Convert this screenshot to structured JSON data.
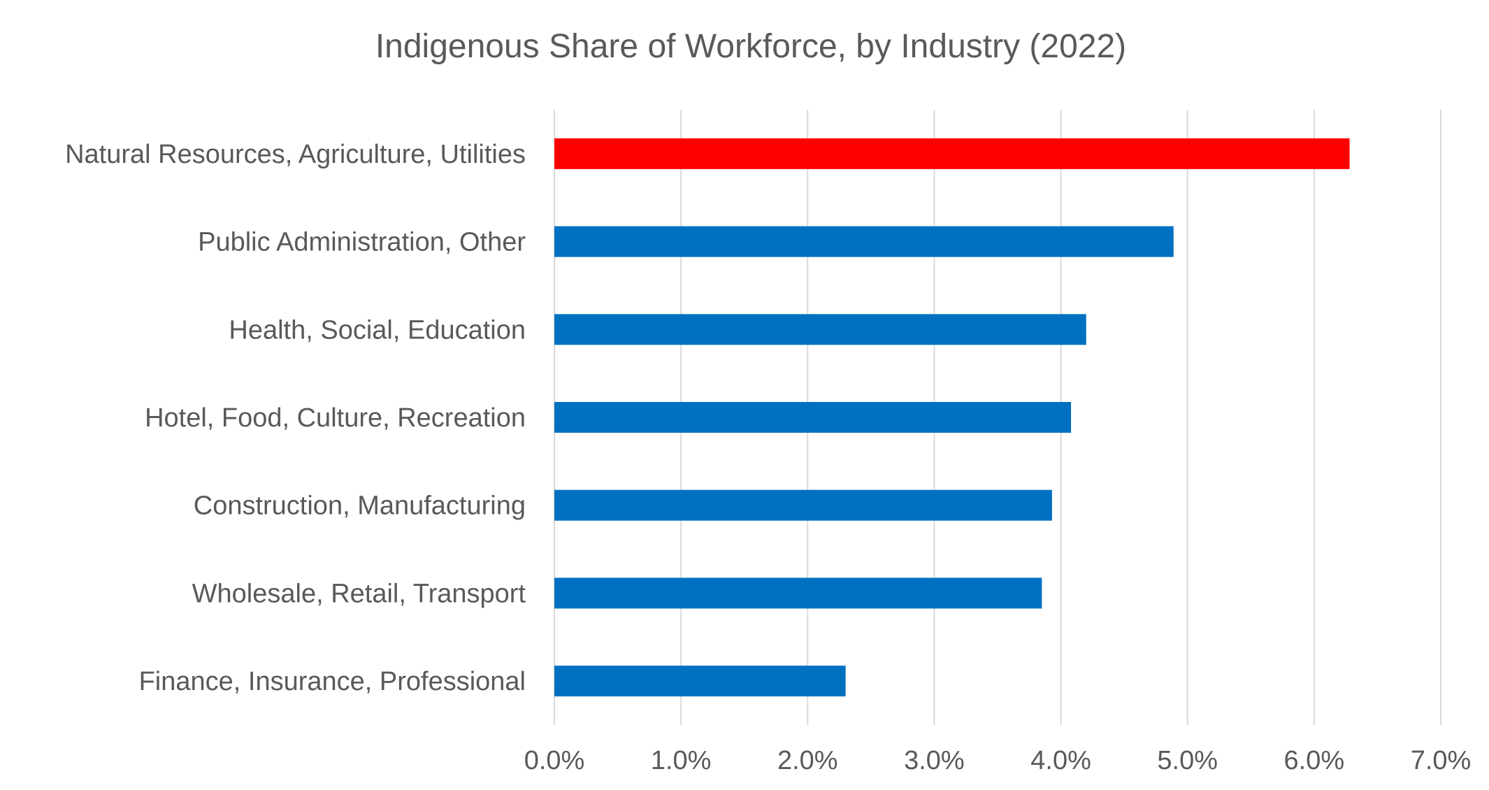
{
  "chart_data": {
    "type": "bar",
    "orientation": "horizontal",
    "title": "Indigenous Share of Workforce, by Industry (2022)",
    "categories": [
      "Natural Resources, Agriculture, Utilities",
      "Public Administration, Other",
      "Health, Social, Education",
      "Hotel, Food, Culture, Recreation",
      "Construction, Manufacturing",
      "Wholesale, Retail, Transport ",
      "Finance, Insurance, Professional"
    ],
    "values": [
      0.0628,
      0.0489,
      0.042,
      0.0408,
      0.0393,
      0.0385,
      0.023
    ],
    "colors": [
      "#ff0000",
      "#0070c0",
      "#0070c0",
      "#0070c0",
      "#0070c0",
      "#0070c0",
      "#0070c0"
    ],
    "xlim": [
      0,
      0.07
    ],
    "x_ticks": [
      0,
      0.01,
      0.02,
      0.03,
      0.04,
      0.05,
      0.06,
      0.07
    ],
    "x_tick_labels": [
      "0.0%",
      "1.0%",
      "2.0%",
      "3.0%",
      "4.0%",
      "5.0%",
      "6.0%",
      "7.0%"
    ],
    "xlabel": "",
    "ylabel": "",
    "grid": "vertical",
    "legend": "none"
  }
}
